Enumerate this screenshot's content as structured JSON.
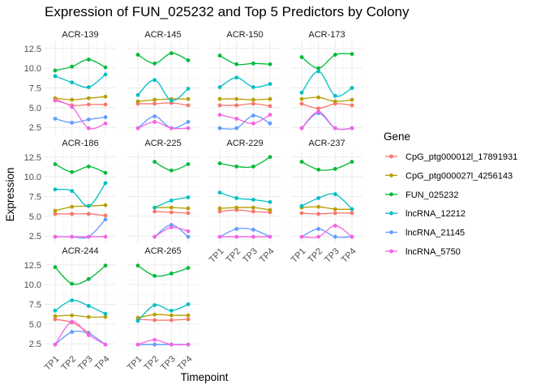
{
  "chart_data": {
    "type": "line",
    "title": "Expression of FUN_025232 and Top 5 Predictors by Colony",
    "xlabel": "Timepoint",
    "ylabel": "Expression",
    "x": [
      "TP1",
      "TP2",
      "TP3",
      "TP4"
    ],
    "yticks": [
      2.5,
      5.0,
      7.5,
      10.0,
      12.5
    ],
    "ytick_labels": [
      "2.5",
      "5.0",
      "7.5",
      "10.0",
      "12.5"
    ],
    "ylim": [
      1.6,
      13.4
    ],
    "grid": true,
    "legend": {
      "title": "Gene",
      "position": "right"
    },
    "series_meta": [
      {
        "name": "CpG_ptg000012l_17891931",
        "color": "#F8766D"
      },
      {
        "name": "CpG_ptg000027l_4256143",
        "color": "#B79F00"
      },
      {
        "name": "FUN_025232",
        "color": "#00BA38"
      },
      {
        "name": "lncRNA_12212",
        "color": "#00BFC4"
      },
      {
        "name": "lncRNA_21145",
        "color": "#619CFF"
      },
      {
        "name": "lncRNA_5750",
        "color": "#F564E3"
      }
    ],
    "panels": [
      {
        "colony": "ACR-139",
        "values": [
          [
            6.1,
            5.3,
            5.4,
            5.4
          ],
          [
            6.2,
            6.0,
            6.2,
            6.4
          ],
          [
            9.7,
            10.2,
            11.1,
            10.1
          ],
          [
            9.0,
            8.2,
            7.6,
            9.2
          ],
          [
            3.6,
            3.1,
            3.5,
            3.8
          ],
          [
            5.9,
            5.1,
            2.4,
            3.0
          ]
        ]
      },
      {
        "colony": "ACR-145",
        "values": [
          [
            5.5,
            5.5,
            5.6,
            5.3
          ],
          [
            5.8,
            6.0,
            6.1,
            6.1
          ],
          [
            11.7,
            10.6,
            11.9,
            11.0
          ],
          [
            6.6,
            8.5,
            5.9,
            7.4
          ],
          [
            2.4,
            3.9,
            2.4,
            3.2
          ],
          [
            2.4,
            3.2,
            2.4,
            2.4
          ]
        ]
      },
      {
        "colony": "ACR-150",
        "values": [
          [
            5.3,
            5.3,
            5.5,
            5.2
          ],
          [
            6.1,
            6.1,
            6.0,
            6.1
          ],
          [
            11.6,
            10.5,
            10.6,
            10.5
          ],
          [
            7.6,
            8.8,
            7.6,
            8.0
          ],
          [
            2.4,
            2.4,
            4.0,
            3.0
          ],
          [
            4.1,
            3.6,
            3.0,
            4.1
          ]
        ]
      },
      {
        "colony": "ACR-173",
        "values": [
          [
            5.5,
            4.9,
            5.5,
            5.3
          ],
          [
            6.1,
            6.3,
            5.8,
            6.0
          ],
          [
            11.4,
            10.0,
            11.7,
            11.8
          ],
          [
            6.9,
            9.6,
            6.5,
            7.5
          ],
          [
            2.4,
            4.3,
            2.4,
            2.4
          ],
          [
            2.4,
            4.5,
            2.4,
            2.4
          ]
        ]
      },
      {
        "colony": "ACR-186",
        "values": [
          [
            5.3,
            5.3,
            5.3,
            5.1
          ],
          [
            5.7,
            6.2,
            6.3,
            6.4
          ],
          [
            11.6,
            10.6,
            11.3,
            10.5
          ],
          [
            8.4,
            8.2,
            6.3,
            9.2
          ],
          [
            2.4,
            2.4,
            2.4,
            4.6
          ],
          [
            2.4,
            2.4,
            2.4,
            2.4
          ]
        ]
      },
      {
        "colony": "ACR-225",
        "values": [
          [
            null,
            5.6,
            5.5,
            5.4
          ],
          [
            null,
            6.1,
            6.1,
            6.0
          ],
          [
            null,
            11.9,
            10.8,
            11.6
          ],
          [
            null,
            6.1,
            7.0,
            7.4
          ],
          [
            null,
            2.4,
            3.9,
            2.4
          ],
          [
            null,
            2.4,
            3.6,
            3.1
          ]
        ]
      },
      {
        "colony": "ACR-229",
        "values": [
          [
            5.6,
            5.8,
            5.6,
            5.5
          ],
          [
            6.0,
            6.1,
            6.1,
            5.8
          ],
          [
            11.7,
            11.3,
            11.3,
            12.5
          ],
          [
            8.0,
            7.3,
            7.1,
            6.8
          ],
          [
            2.4,
            3.4,
            3.3,
            2.4
          ],
          [
            2.4,
            2.4,
            2.4,
            2.4
          ]
        ]
      },
      {
        "colony": "ACR-237",
        "values": [
          [
            5.4,
            5.3,
            5.4,
            5.4
          ],
          [
            6.1,
            6.2,
            5.9,
            5.9
          ],
          [
            11.9,
            10.9,
            11.0,
            11.9
          ],
          [
            6.3,
            7.3,
            7.8,
            5.9
          ],
          [
            2.4,
            3.4,
            2.4,
            2.4
          ],
          [
            2.4,
            2.4,
            3.8,
            2.4
          ]
        ]
      },
      {
        "colony": "ACR-244",
        "values": [
          [
            5.6,
            5.2,
            3.9,
            2.4
          ],
          [
            6.0,
            6.1,
            5.9,
            5.9
          ],
          [
            12.2,
            10.1,
            10.7,
            12.4
          ],
          [
            6.7,
            8.0,
            7.3,
            6.3
          ],
          [
            2.4,
            4.0,
            3.8,
            2.4
          ],
          [
            2.4,
            5.3,
            3.6,
            2.4
          ]
        ]
      },
      {
        "colony": "ACR-265",
        "values": [
          [
            5.6,
            5.5,
            5.5,
            5.6
          ],
          [
            5.8,
            6.2,
            6.1,
            6.1
          ],
          [
            12.4,
            11.1,
            11.4,
            12.1
          ],
          [
            5.4,
            7.4,
            6.7,
            7.5
          ],
          [
            2.4,
            2.4,
            2.4,
            2.4
          ],
          [
            2.4,
            3.0,
            2.4,
            2.4
          ]
        ]
      }
    ]
  }
}
